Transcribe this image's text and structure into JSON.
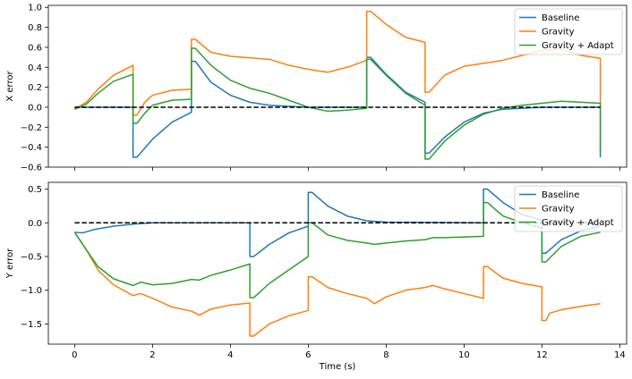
{
  "chart_data": [
    {
      "type": "line",
      "ylabel": "X error",
      "xlim": [
        -0.675,
        14.175
      ],
      "ylim": [
        -0.6,
        1.02
      ],
      "xticks": [
        0,
        2,
        4,
        6,
        8,
        10,
        12,
        14
      ],
      "show_xtick_labels": false,
      "yticks": [
        -0.6,
        -0.4,
        -0.2,
        0.0,
        0.2,
        0.4,
        0.6,
        0.8,
        1.0
      ],
      "ytick_labels": [
        "−0.6",
        "−0.4",
        "−0.2",
        "0.0",
        "0.2",
        "0.4",
        "0.6",
        "0.8",
        "1.0"
      ],
      "legend_position": "top-right",
      "reference_line": {
        "y": 0,
        "x": [
          0,
          13.5
        ],
        "style": "dashed",
        "color": "#000000"
      },
      "series": [
        {
          "name": "Baseline",
          "color": "#1f77b4",
          "points": [
            [
              0,
              0
            ],
            [
              1.5,
              0
            ],
            [
              1.5,
              -0.5
            ],
            [
              1.6,
              -0.5
            ],
            [
              2.0,
              -0.32
            ],
            [
              2.5,
              -0.15
            ],
            [
              3.0,
              -0.05
            ],
            [
              3.0,
              0.46
            ],
            [
              3.1,
              0.46
            ],
            [
              3.5,
              0.25
            ],
            [
              4.0,
              0.12
            ],
            [
              4.5,
              0.05
            ],
            [
              5.0,
              0.02
            ],
            [
              6.0,
              0
            ],
            [
              7.5,
              0
            ],
            [
              7.5,
              0.5
            ],
            [
              7.6,
              0.5
            ],
            [
              8.0,
              0.33
            ],
            [
              8.5,
              0.15
            ],
            [
              9.0,
              0.05
            ],
            [
              9.0,
              -0.46
            ],
            [
              9.1,
              -0.46
            ],
            [
              9.5,
              -0.3
            ],
            [
              10.0,
              -0.15
            ],
            [
              10.5,
              -0.06
            ],
            [
              11.0,
              -0.02
            ],
            [
              12.0,
              0
            ],
            [
              13.5,
              0
            ],
            [
              13.5,
              -0.5
            ]
          ]
        },
        {
          "name": "Gravity",
          "color": "#ff7f0e",
          "points": [
            [
              0,
              -0.02
            ],
            [
              0.3,
              0.05
            ],
            [
              0.6,
              0.18
            ],
            [
              1.0,
              0.32
            ],
            [
              1.5,
              0.42
            ],
            [
              1.5,
              -0.08
            ],
            [
              1.6,
              -0.08
            ],
            [
              1.8,
              0.05
            ],
            [
              2.0,
              0.12
            ],
            [
              2.5,
              0.17
            ],
            [
              3.0,
              0.18
            ],
            [
              3.0,
              0.68
            ],
            [
              3.1,
              0.68
            ],
            [
              3.5,
              0.55
            ],
            [
              4.0,
              0.51
            ],
            [
              5.0,
              0.48
            ],
            [
              5.5,
              0.42
            ],
            [
              6.0,
              0.38
            ],
            [
              6.5,
              0.35
            ],
            [
              7.0,
              0.4
            ],
            [
              7.5,
              0.47
            ],
            [
              7.5,
              0.96
            ],
            [
              7.6,
              0.96
            ],
            [
              8.0,
              0.83
            ],
            [
              8.5,
              0.7
            ],
            [
              9.0,
              0.65
            ],
            [
              9.0,
              0.15
            ],
            [
              9.1,
              0.15
            ],
            [
              9.5,
              0.32
            ],
            [
              10.0,
              0.41
            ],
            [
              11.0,
              0.47
            ],
            [
              12.0,
              0.57
            ],
            [
              12.5,
              0.58
            ],
            [
              13.0,
              0.52
            ],
            [
              13.5,
              0.49
            ],
            [
              13.5,
              0.03
            ]
          ]
        },
        {
          "name": "Gravity + Adapt",
          "color": "#2ca02c",
          "points": [
            [
              0,
              -0.02
            ],
            [
              0.3,
              0.03
            ],
            [
              0.6,
              0.14
            ],
            [
              1.0,
              0.26
            ],
            [
              1.5,
              0.33
            ],
            [
              1.5,
              -0.16
            ],
            [
              1.6,
              -0.16
            ],
            [
              1.8,
              -0.06
            ],
            [
              2.0,
              0.02
            ],
            [
              2.5,
              0.07
            ],
            [
              3.0,
              0.08
            ],
            [
              3.0,
              0.59
            ],
            [
              3.1,
              0.59
            ],
            [
              3.5,
              0.42
            ],
            [
              4.0,
              0.27
            ],
            [
              4.5,
              0.19
            ],
            [
              5.0,
              0.14
            ],
            [
              5.5,
              0.07
            ],
            [
              6.0,
              0
            ],
            [
              6.5,
              -0.04
            ],
            [
              7.0,
              -0.03
            ],
            [
              7.5,
              -0.01
            ],
            [
              7.5,
              0.48
            ],
            [
              7.6,
              0.48
            ],
            [
              8.0,
              0.32
            ],
            [
              8.5,
              0.14
            ],
            [
              9.0,
              0.02
            ],
            [
              9.0,
              -0.52
            ],
            [
              9.1,
              -0.52
            ],
            [
              9.5,
              -0.34
            ],
            [
              10.0,
              -0.18
            ],
            [
              10.5,
              -0.07
            ],
            [
              11.0,
              -0.01
            ],
            [
              11.5,
              0.02
            ],
            [
              12.0,
              0.04
            ],
            [
              12.5,
              0.06
            ],
            [
              13.0,
              0.05
            ],
            [
              13.5,
              0.04
            ],
            [
              13.5,
              -0.48
            ]
          ]
        }
      ]
    },
    {
      "type": "line",
      "xlabel": "Time (s)",
      "ylabel": "Y error",
      "xlim": [
        -0.675,
        14.175
      ],
      "ylim": [
        -1.8,
        0.6
      ],
      "xticks": [
        0,
        2,
        4,
        6,
        8,
        10,
        12,
        14
      ],
      "xtick_labels": [
        "0",
        "2",
        "4",
        "6",
        "8",
        "10",
        "12",
        "14"
      ],
      "yticks": [
        -1.5,
        -1.0,
        -0.5,
        0.0,
        0.5
      ],
      "ytick_labels": [
        "−1.5",
        "−1.0",
        "−0.5",
        "0.0",
        "0.5"
      ],
      "legend_position": "top-right",
      "reference_line": {
        "y": 0,
        "x": [
          0,
          13.5
        ],
        "style": "dashed",
        "color": "#000000"
      },
      "series": [
        {
          "name": "Baseline",
          "color": "#1f77b4",
          "points": [
            [
              0,
              -0.14
            ],
            [
              0.2,
              -0.15
            ],
            [
              0.5,
              -0.1
            ],
            [
              1.0,
              -0.05
            ],
            [
              1.5,
              -0.02
            ],
            [
              2.0,
              0
            ],
            [
              4.5,
              0
            ],
            [
              4.5,
              -0.5
            ],
            [
              4.6,
              -0.5
            ],
            [
              5.0,
              -0.32
            ],
            [
              5.5,
              -0.15
            ],
            [
              6.0,
              -0.05
            ],
            [
              6.0,
              0.45
            ],
            [
              6.1,
              0.45
            ],
            [
              6.5,
              0.25
            ],
            [
              7.0,
              0.1
            ],
            [
              7.5,
              0.03
            ],
            [
              8.0,
              0.01
            ],
            [
              10.5,
              0
            ],
            [
              10.5,
              0.5
            ],
            [
              10.6,
              0.5
            ],
            [
              11.0,
              0.3
            ],
            [
              11.5,
              0.12
            ],
            [
              12.0,
              0.04
            ],
            [
              12.0,
              -0.45
            ],
            [
              12.1,
              -0.45
            ],
            [
              12.5,
              -0.25
            ],
            [
              13.0,
              -0.12
            ],
            [
              13.5,
              -0.05
            ]
          ]
        },
        {
          "name": "Gravity",
          "color": "#ff7f0e",
          "points": [
            [
              0,
              -0.14
            ],
            [
              0.3,
              -0.4
            ],
            [
              0.6,
              -0.7
            ],
            [
              1.0,
              -0.92
            ],
            [
              1.5,
              -1.08
            ],
            [
              1.7,
              -1.05
            ],
            [
              2.0,
              -1.12
            ],
            [
              2.5,
              -1.25
            ],
            [
              3.0,
              -1.31
            ],
            [
              3.2,
              -1.37
            ],
            [
              3.5,
              -1.28
            ],
            [
              4.0,
              -1.22
            ],
            [
              4.5,
              -1.19
            ],
            [
              4.5,
              -1.68
            ],
            [
              4.6,
              -1.68
            ],
            [
              5.0,
              -1.5
            ],
            [
              5.5,
              -1.38
            ],
            [
              6.0,
              -1.3
            ],
            [
              6.0,
              -0.8
            ],
            [
              6.1,
              -0.8
            ],
            [
              6.5,
              -0.96
            ],
            [
              7.0,
              -1.05
            ],
            [
              7.5,
              -1.12
            ],
            [
              7.7,
              -1.2
            ],
            [
              8.0,
              -1.1
            ],
            [
              8.5,
              -1.0
            ],
            [
              9.0,
              -0.96
            ],
            [
              9.2,
              -0.93
            ],
            [
              9.5,
              -0.98
            ],
            [
              10.0,
              -1.05
            ],
            [
              10.5,
              -1.12
            ],
            [
              10.5,
              -0.65
            ],
            [
              10.6,
              -0.65
            ],
            [
              11.0,
              -0.82
            ],
            [
              11.5,
              -0.9
            ],
            [
              12.0,
              -0.95
            ],
            [
              12.0,
              -1.45
            ],
            [
              12.1,
              -1.45
            ],
            [
              12.2,
              -1.34
            ],
            [
              12.5,
              -1.29
            ],
            [
              13.0,
              -1.24
            ],
            [
              13.5,
              -1.2
            ]
          ]
        },
        {
          "name": "Gravity + Adapt",
          "color": "#2ca02c",
          "points": [
            [
              0,
              -0.14
            ],
            [
              0.3,
              -0.4
            ],
            [
              0.6,
              -0.65
            ],
            [
              1.0,
              -0.83
            ],
            [
              1.5,
              -0.93
            ],
            [
              1.7,
              -0.88
            ],
            [
              2.0,
              -0.92
            ],
            [
              2.5,
              -0.9
            ],
            [
              3.0,
              -0.84
            ],
            [
              3.2,
              -0.85
            ],
            [
              3.5,
              -0.78
            ],
            [
              4.0,
              -0.7
            ],
            [
              4.5,
              -0.61
            ],
            [
              4.5,
              -1.11
            ],
            [
              4.6,
              -1.11
            ],
            [
              5.0,
              -0.9
            ],
            [
              5.5,
              -0.7
            ],
            [
              6.0,
              -0.5
            ],
            [
              6.0,
              0
            ],
            [
              6.1,
              0
            ],
            [
              6.5,
              -0.18
            ],
            [
              7.0,
              -0.26
            ],
            [
              7.5,
              -0.3
            ],
            [
              7.7,
              -0.32
            ],
            [
              8.0,
              -0.3
            ],
            [
              8.5,
              -0.27
            ],
            [
              9.0,
              -0.25
            ],
            [
              9.2,
              -0.22
            ],
            [
              9.5,
              -0.22
            ],
            [
              10.0,
              -0.21
            ],
            [
              10.5,
              -0.2
            ],
            [
              10.5,
              0.3
            ],
            [
              10.6,
              0.3
            ],
            [
              11.0,
              0.1
            ],
            [
              11.5,
              0.0
            ],
            [
              12.0,
              -0.08
            ],
            [
              12.0,
              -0.58
            ],
            [
              12.1,
              -0.58
            ],
            [
              12.5,
              -0.35
            ],
            [
              13.0,
              -0.2
            ],
            [
              13.5,
              -0.14
            ]
          ]
        }
      ]
    }
  ]
}
